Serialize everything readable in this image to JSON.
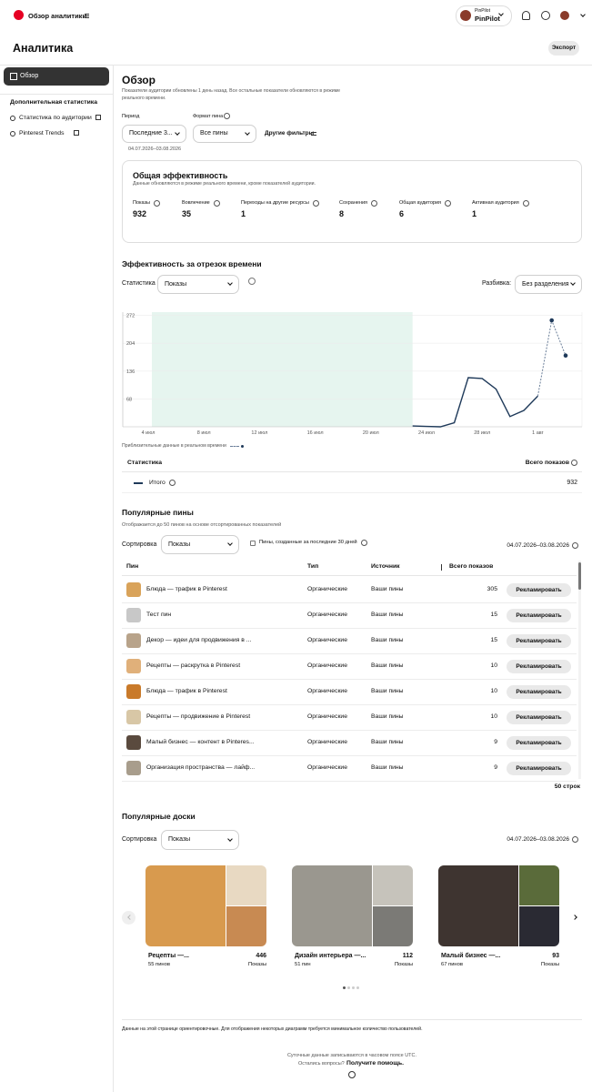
{
  "header": {
    "title": "Обзор аналитики",
    "account_small": "PinPilot",
    "account_name": "PinPilot"
  },
  "page_title": "Аналитика",
  "export": "Экспорт",
  "sidebar": {
    "overview": "Обзор",
    "section": "Дополнительная статистика",
    "links": [
      "Статистика по аудитории",
      "Pinterest Trends"
    ]
  },
  "overview": {
    "title": "Обзор",
    "note": "Показатели аудитории обновлены 1 день назад. Все остальные показатели обновляются в режиме реального времени.",
    "period_label": "Период",
    "period_value": "Последние 3...",
    "format_label": "Формат пина",
    "format_value": "Все пины",
    "more_filters": "Другие фильтры",
    "date_range": "04.07.2026–03.08.2026"
  },
  "performance": {
    "title": "Общая эффективность",
    "note": "Данные обновляются в режиме реального времени, кроме показателей аудитории.",
    "metrics": [
      {
        "label": "Показы",
        "value": 932
      },
      {
        "label": "Вовлечение",
        "value": 35
      },
      {
        "label": "Переходы на другие ресурсы",
        "value": 1
      },
      {
        "label": "Сохранения",
        "value": 8
      },
      {
        "label": "Общая аудитория",
        "value": 6
      },
      {
        "label": "Активная аудитория",
        "value": 1
      }
    ]
  },
  "timeline": {
    "title": "Эффективность за отрезок времени",
    "metric_label": "Статистика",
    "metric_value": "Показы",
    "split_label": "Разбивка:",
    "split_value": "Без разделения"
  },
  "chart_data": {
    "type": "line",
    "categories": [
      "4 июл",
      null,
      null,
      null,
      "8 июл",
      null,
      null,
      null,
      "12 июл",
      null,
      null,
      null,
      "16 июл",
      null,
      null,
      null,
      "20 июл",
      null,
      null,
      null,
      "24 июл",
      null,
      null,
      null,
      "28 июл",
      null,
      null,
      null,
      "1 авг",
      null,
      null
    ],
    "series": [
      {
        "name": "Итого",
        "color": "#1f3a5a",
        "values": [
          null,
          null,
          null,
          null,
          null,
          null,
          null,
          null,
          null,
          null,
          null,
          null,
          null,
          null,
          null,
          null,
          null,
          null,
          null,
          2,
          1,
          0,
          10,
          120,
          118,
          92,
          25,
          40,
          75,
          null,
          null
        ]
      },
      {
        "name": "Приблизительные данные в реальном времени",
        "color": "#6b7f99",
        "dashed": true,
        "markers": true,
        "values": [
          null,
          null,
          null,
          null,
          null,
          null,
          null,
          null,
          null,
          null,
          null,
          null,
          null,
          null,
          null,
          null,
          null,
          null,
          null,
          null,
          null,
          null,
          null,
          null,
          null,
          null,
          null,
          null,
          75,
          260,
          174
        ]
      }
    ],
    "ylim": [
      0,
      280
    ],
    "yticks": [
      68,
      136,
      204,
      272
    ],
    "grid": true
  },
  "stats_table": {
    "headers": [
      "Статистика",
      "Всего показов"
    ],
    "total": 932
  },
  "top_pins": {
    "title": "Популярные пины",
    "note": "Отображается до 50 пинов на основе отсортированных показателей",
    "sort_label": "Сортировка",
    "sort_value": "Показы",
    "checkbox": "Пины, созданные за последние 30 дней",
    "date_range": "04.07.2026–03.08.2026",
    "headers": [
      "Пин",
      "Тип",
      "Источник",
      "Всего показов"
    ],
    "action": "Рекламировать",
    "rows": [
      {
        "name": "Блюда — трафик в Pinterest",
        "type": "Органические",
        "source": "Ваши пины",
        "count": 305
      },
      {
        "name": "Тест пин",
        "type": "Органические",
        "source": "Ваши пины",
        "count": 15
      },
      {
        "name": "Декор — идеи для продвижения в ...",
        "type": "Органические",
        "source": "Ваши пины",
        "count": 15
      },
      {
        "name": "Рецепты — раскрутка в Pinterest",
        "type": "Органические",
        "source": "Ваши пины",
        "count": 10
      },
      {
        "name": "Блюда — трафик в Pinterest",
        "type": "Органические",
        "source": "Ваши пины",
        "count": 10
      },
      {
        "name": "Рецепты — продвижение в Pinterest",
        "type": "Органические",
        "source": "Ваши пины",
        "count": 10
      },
      {
        "name": "Малый бизнес — контент в Pinteres...",
        "type": "Органические",
        "source": "Ваши пины",
        "count": 9
      },
      {
        "name": "Организация пространства — лайф...",
        "type": "Органические",
        "source": "Ваши пины",
        "count": 9
      }
    ],
    "row_count": "50 строк"
  },
  "top_boards": {
    "title": "Популярные доски",
    "sort_label": "Сортировка",
    "sort_value": "Показы",
    "date_range": "04.07.2026–03.08.2026",
    "boards": [
      {
        "name": "Рецепты —...",
        "pins": "55 пинов",
        "count": 446,
        "metric": "Показы"
      },
      {
        "name": "Дизайн интерьера —...",
        "pins": "51 пин",
        "count": 112,
        "metric": "Показы"
      },
      {
        "name": "Малый бизнес —...",
        "pins": "67 пинов",
        "count": 93,
        "metric": "Показы"
      }
    ]
  },
  "footer": {
    "disclaimer": "Данные на этой странице ориентировочные. Для отображения некоторых диаграмм требуется минимальное количество пользователей.",
    "timezone": "Суточные данные записываются в часовом поясе UTC.",
    "question": "Остались вопросы?",
    "help": "Получите помощь."
  }
}
